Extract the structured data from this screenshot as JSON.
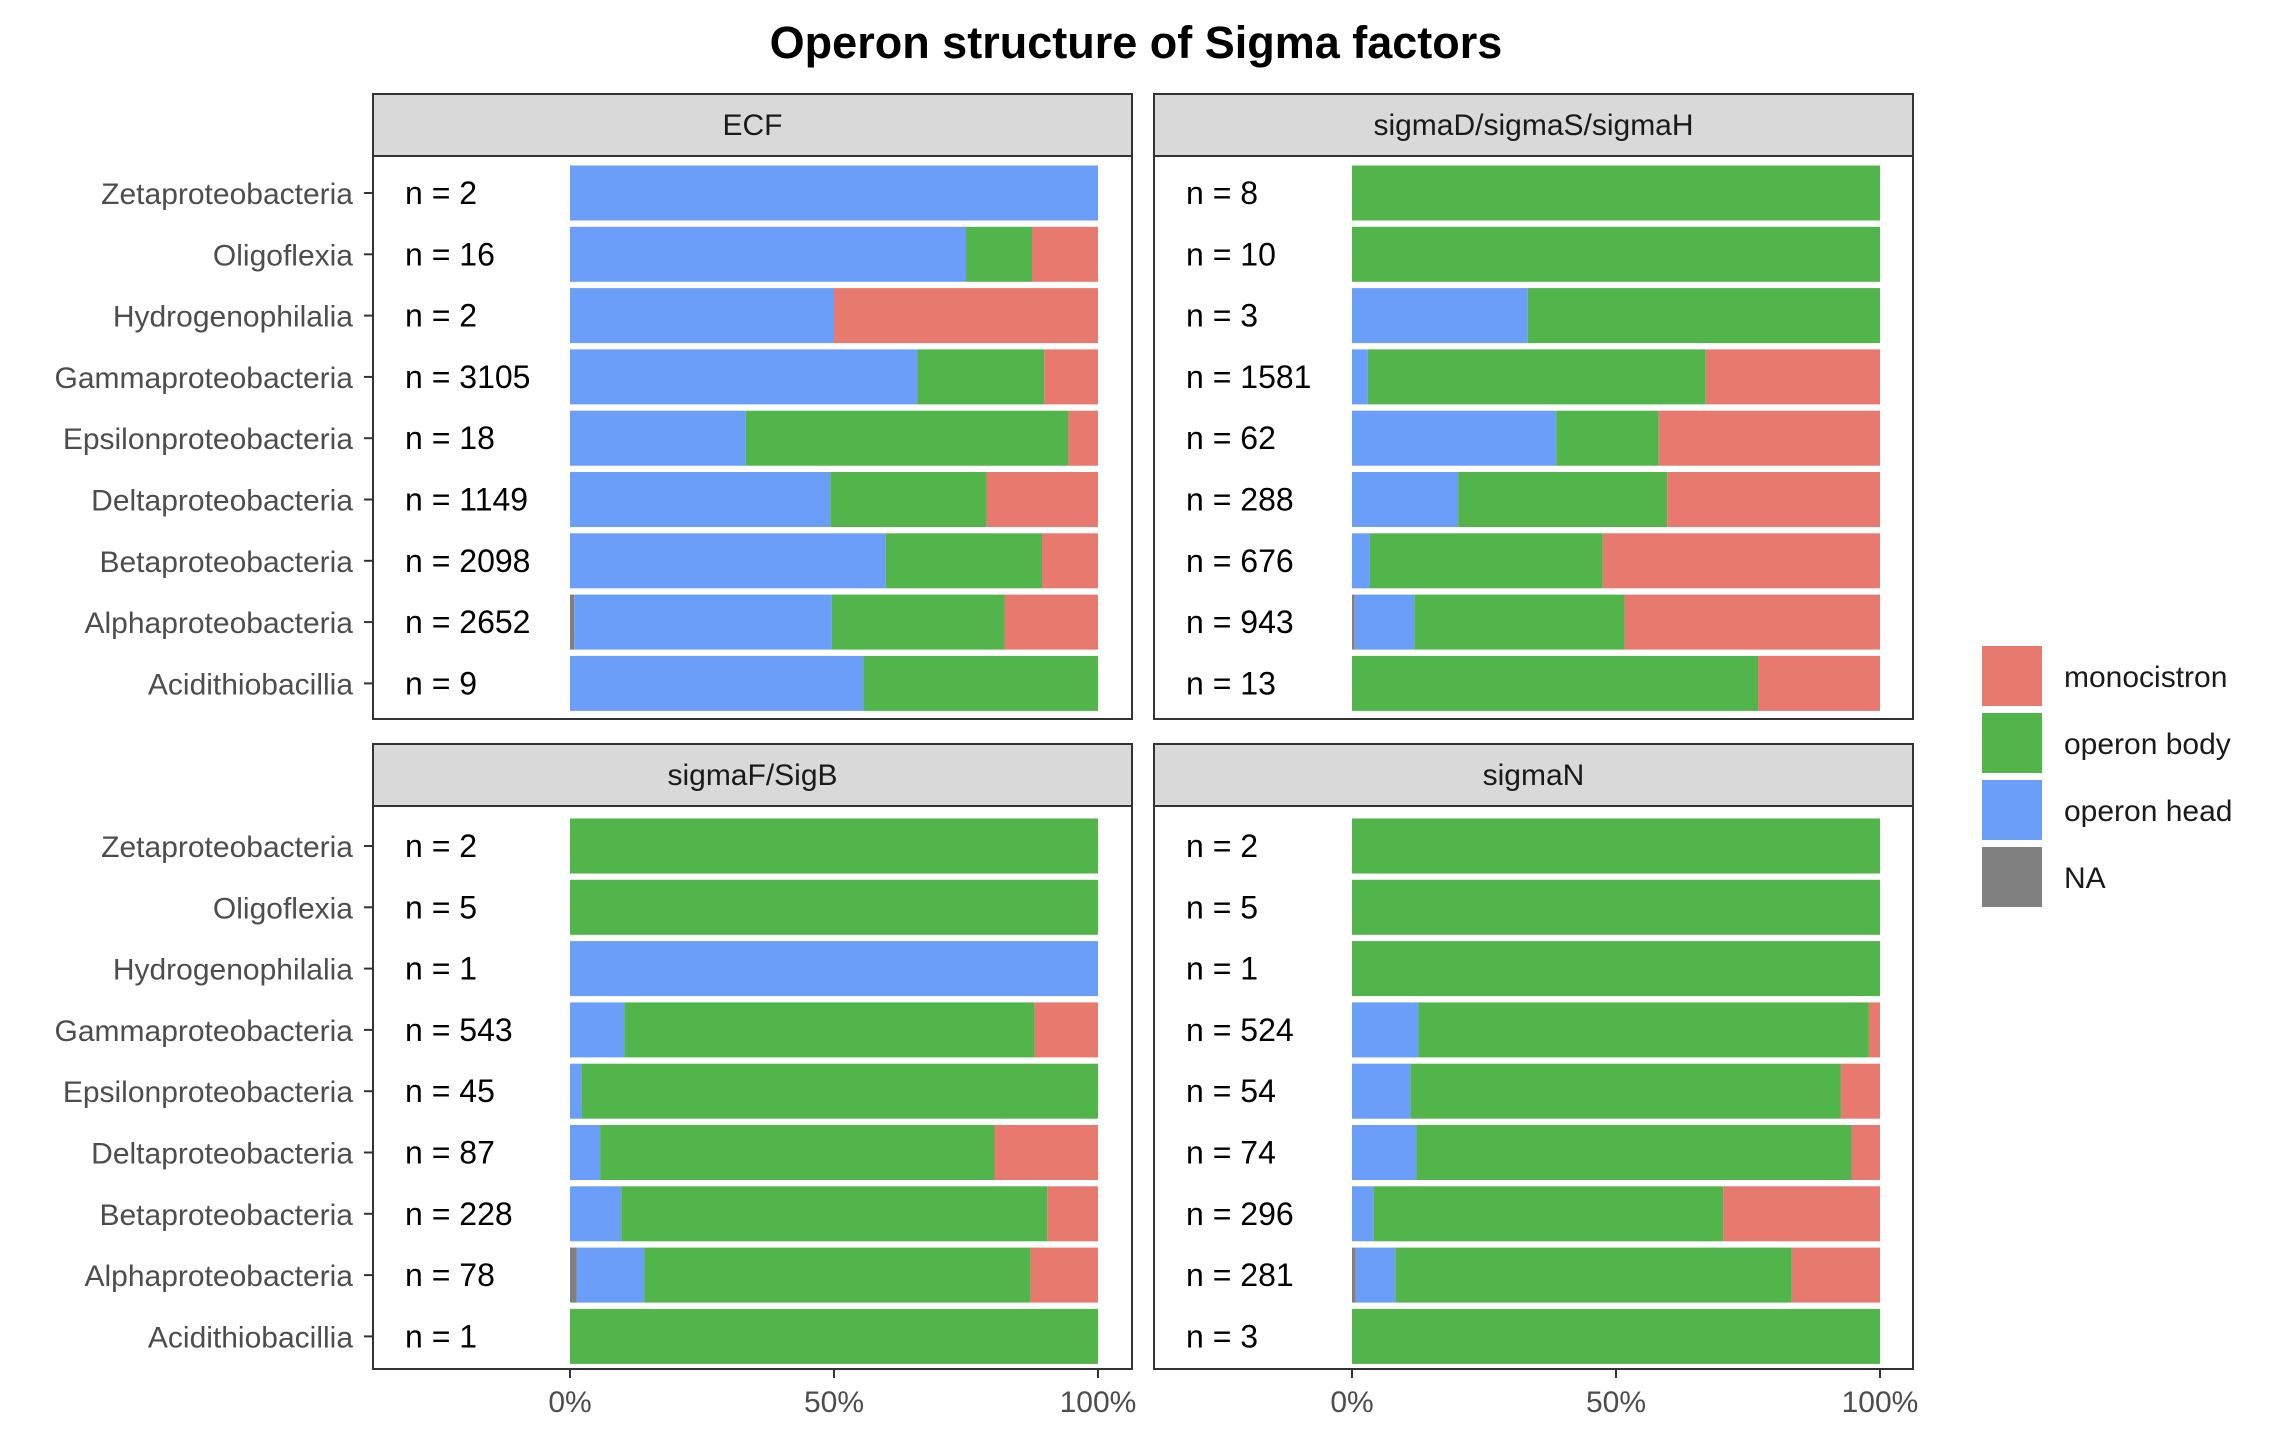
{
  "chart_data": {
    "type": "bar",
    "orientation": "horizontal",
    "stacked": "percent",
    "title": "Operon structure of Sigma factors",
    "categories": [
      "Zetaproteobacteria",
      "Oligoflexia",
      "Hydrogenophilalia",
      "Gammaproteobacteria",
      "Epsilonproteobacteria",
      "Deltaproteobacteria",
      "Betaproteobacteria",
      "Alphaproteobacteria",
      "Acidithiobacillia"
    ],
    "stack_order": [
      "NA",
      "operon head",
      "operon body",
      "monocistron"
    ],
    "colors": {
      "monocistron": "#E8796E",
      "operon body": "#52B54B",
      "operon head": "#6A9EF8",
      "NA": "#808080"
    },
    "xticks": [
      0,
      50,
      100
    ],
    "xtick_labels": [
      "0%",
      "50%",
      "100%"
    ],
    "xlim": [
      0,
      100
    ],
    "legend": {
      "position": "right",
      "entries": [
        "monocistron",
        "operon body",
        "operon head",
        "NA"
      ]
    },
    "panels": [
      {
        "name": "ECF",
        "n_labels": [
          "n = 2",
          "n = 16",
          "n = 2",
          "n = 3105",
          "n = 18",
          "n = 1149",
          "n = 2098",
          "n = 2652",
          "n = 9"
        ],
        "series": [
          {
            "name": "NA",
            "values": [
              0,
              0,
              0,
              0,
              0,
              0,
              0,
              0.8,
              0
            ]
          },
          {
            "name": "operon head",
            "values": [
              100,
              75,
              50,
              65.8,
              33.3,
              49.3,
              59.8,
              48.8,
              55.6
            ]
          },
          {
            "name": "operon body",
            "values": [
              0,
              12.5,
              0,
              24.0,
              61.1,
              29.6,
              29.6,
              32.7,
              44.4
            ]
          },
          {
            "name": "monocistron",
            "values": [
              0,
              12.5,
              50,
              10.2,
              5.6,
              21.1,
              10.6,
              17.7,
              0
            ]
          }
        ]
      },
      {
        "name": "sigmaD/sigmaS/sigmaH",
        "n_labels": [
          "n = 8",
          "n = 10",
          "n = 3",
          "n = 1581",
          "n = 62",
          "n = 288",
          "n = 676",
          "n = 943",
          "n = 13"
        ],
        "series": [
          {
            "name": "NA",
            "values": [
              0,
              0,
              0,
              0,
              0,
              0,
              0,
              0.5,
              0
            ]
          },
          {
            "name": "operon head",
            "values": [
              0,
              0,
              33.3,
              3.0,
              38.7,
              20.1,
              3.4,
              11.3,
              0
            ]
          },
          {
            "name": "operon body",
            "values": [
              100,
              100,
              66.7,
              64.0,
              19.4,
              39.6,
              44.1,
              39.8,
              76.9
            ]
          },
          {
            "name": "monocistron",
            "values": [
              0,
              0,
              0,
              33.0,
              41.9,
              40.3,
              52.5,
              48.4,
              23.1
            ]
          }
        ]
      },
      {
        "name": "sigmaF/SigB",
        "n_labels": [
          "n = 2",
          "n = 5",
          "n = 1",
          "n = 543",
          "n = 45",
          "n = 87",
          "n = 228",
          "n = 78",
          "n = 1"
        ],
        "series": [
          {
            "name": "NA",
            "values": [
              0,
              0,
              0,
              0,
              0,
              0,
              0,
              1.3,
              0
            ]
          },
          {
            "name": "operon head",
            "values": [
              0,
              0,
              100,
              10.3,
              2.2,
              5.7,
              9.7,
              12.8,
              0
            ]
          },
          {
            "name": "operon body",
            "values": [
              100,
              100,
              0,
              77.7,
              97.8,
              74.7,
              80.7,
              73.1,
              100
            ]
          },
          {
            "name": "monocistron",
            "values": [
              0,
              0,
              0,
              12.0,
              0,
              19.6,
              9.6,
              12.8,
              0
            ]
          }
        ]
      },
      {
        "name": "sigmaN",
        "n_labels": [
          "n = 2",
          "n = 5",
          "n = 1",
          "n = 524",
          "n = 54",
          "n = 74",
          "n = 296",
          "n = 281",
          "n = 3"
        ],
        "series": [
          {
            "name": "NA",
            "values": [
              0,
              0,
              0,
              0,
              0,
              0,
              0,
              0.7,
              0
            ]
          },
          {
            "name": "operon head",
            "values": [
              0,
              0,
              0,
              12.6,
              11.1,
              12.2,
              4.1,
              7.5,
              0
            ]
          },
          {
            "name": "operon body",
            "values": [
              100,
              100,
              100,
              85.3,
              81.5,
              82.4,
              66.2,
              75.1,
              100
            ]
          },
          {
            "name": "monocistron",
            "values": [
              0,
              0,
              0,
              2.1,
              7.4,
              5.4,
              29.7,
              16.7,
              0
            ]
          }
        ]
      }
    ]
  }
}
